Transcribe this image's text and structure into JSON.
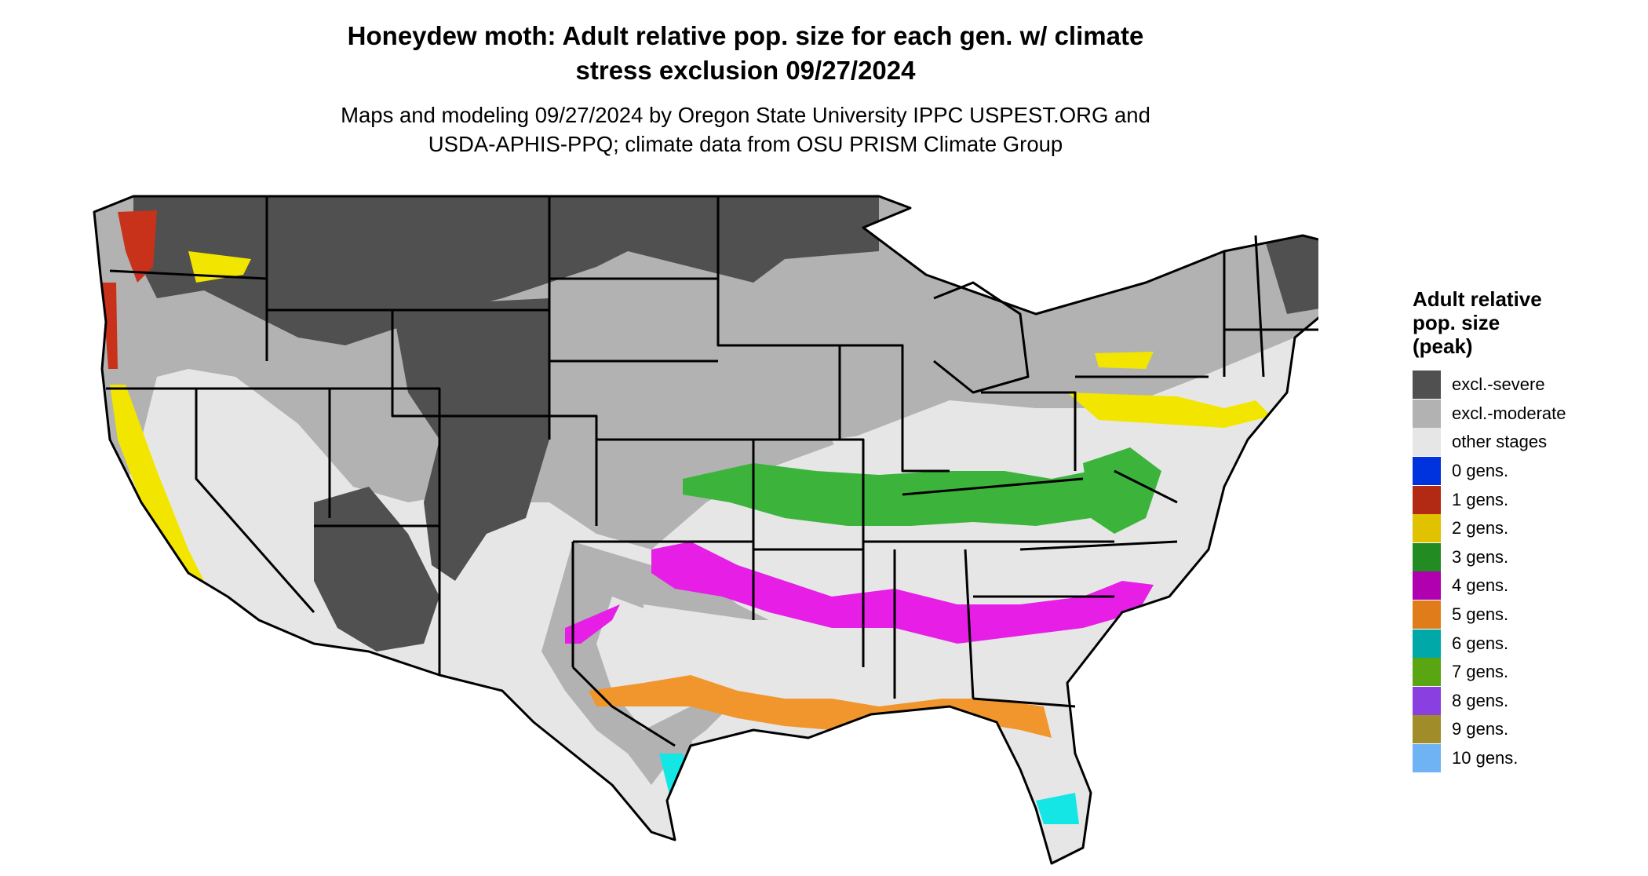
{
  "title_line1": "Honeydew moth: Adult relative pop. size for each gen. w/ climate",
  "title_line2": "stress exclusion 09/27/2024",
  "subtitle_line1": "Maps and modeling 09/27/2024 by Oregon State University IPPC USPEST.ORG and",
  "subtitle_line2": "USDA-APHIS-PPQ; climate data from OSU PRISM Climate Group",
  "legend": {
    "title_line1": "Adult relative",
    "title_line2": "pop. size",
    "title_line3": "(peak)",
    "items": [
      {
        "label": "excl.-severe",
        "color": "#505050"
      },
      {
        "label": "excl.-moderate",
        "color": "#b2b2b2"
      },
      {
        "label": "other stages",
        "color": "#e6e6e6"
      },
      {
        "label": "0 gens.",
        "color": "#0033dd"
      },
      {
        "label": "1 gens.",
        "color": "#b22a14"
      },
      {
        "label": "2 gens.",
        "color": "#e0c200"
      },
      {
        "label": "3 gens.",
        "color": "#228b22"
      },
      {
        "label": "4 gens.",
        "color": "#b000b0"
      },
      {
        "label": "5 gens.",
        "color": "#e07d1a"
      },
      {
        "label": "6 gens.",
        "color": "#00a8a8"
      },
      {
        "label": "7 gens.",
        "color": "#5aa512"
      },
      {
        "label": "8 gens.",
        "color": "#8a3fe0"
      },
      {
        "label": "9 gens.",
        "color": "#a08c28"
      },
      {
        "label": "10 gens.",
        "color": "#6fb3f5"
      }
    ]
  },
  "map_colors": {
    "severe": "#505050",
    "moderate": "#b2b2b2",
    "other": "#e6e6e6",
    "gen1": "#c8321a",
    "gen2": "#f2e600",
    "gen3": "#3cb43c",
    "gen4": "#e61ee6",
    "gen5": "#f0962d",
    "gen6": "#14e6e6",
    "gen7": "#6ec81e"
  }
}
